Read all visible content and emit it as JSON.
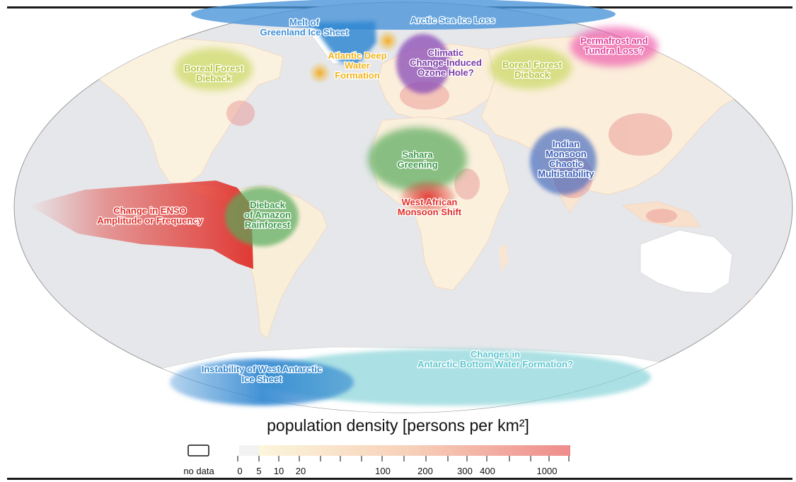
{
  "map": {
    "tipping_points": [
      {
        "id": "arctic-sea-ice",
        "lines": [
          "Arctic Sea-Ice Loss"
        ],
        "color": "#3f8fd6"
      },
      {
        "id": "greenland",
        "lines": [
          "Melt of",
          "Greenland Ice Sheet"
        ],
        "color": "#3f8fd6"
      },
      {
        "id": "atlantic-deep-water",
        "lines": [
          "Atlantic Deep",
          "Water",
          "Formation"
        ],
        "color": "#f2b51c"
      },
      {
        "id": "ozone-hole",
        "lines": [
          "Climatic",
          "Change-Induced",
          "Ozone Hole?"
        ],
        "color": "#7a3aa6"
      },
      {
        "id": "boreal-forest-na",
        "lines": [
          "Boreal Forest",
          "Dieback"
        ],
        "color": "#b6c63a"
      },
      {
        "id": "boreal-forest-eurasia",
        "lines": [
          "Boreal Forest",
          "Dieback"
        ],
        "color": "#b6c63a"
      },
      {
        "id": "permafrost",
        "lines": [
          "Permafrost and",
          "Tundra Loss?"
        ],
        "color": "#e0409a"
      },
      {
        "id": "sahara",
        "lines": [
          "Sahara",
          "Greening"
        ],
        "color": "#3e9a4a"
      },
      {
        "id": "west-african-monsoon",
        "lines": [
          "West African",
          "Monsoon Shift"
        ],
        "color": "#e0302a"
      },
      {
        "id": "indian-monsoon",
        "lines": [
          "Indian",
          "Monsoon",
          "Chaotic",
          "Multistability"
        ],
        "color": "#3a5fb8"
      },
      {
        "id": "enso",
        "lines": [
          "Change in ENSO",
          "Amplitude or Frequency"
        ],
        "color": "#e0302a"
      },
      {
        "id": "amazon",
        "lines": [
          "Dieback",
          "of Amazon",
          "Rainforest"
        ],
        "color": "#3e9a4a"
      },
      {
        "id": "west-antarctic",
        "lines": [
          "Instability of West Antarctic",
          "Ice Sheet"
        ],
        "color": "#2f86d0"
      },
      {
        "id": "antarctic-bottom-water",
        "lines": [
          "Changes in",
          "Antarctic Bottom Water Formation?"
        ],
        "color": "#5cc6cf"
      }
    ]
  },
  "legend": {
    "title": "population density [persons per km²]",
    "no_data_label": "no data",
    "tick_labels": [
      "0",
      "5",
      "10",
      "20",
      "100",
      "200",
      "300",
      "400",
      "1000"
    ],
    "colors": {
      "no_data": "#ffffff",
      "low": "#fbf6dc",
      "high": "#ee8c8c"
    }
  }
}
